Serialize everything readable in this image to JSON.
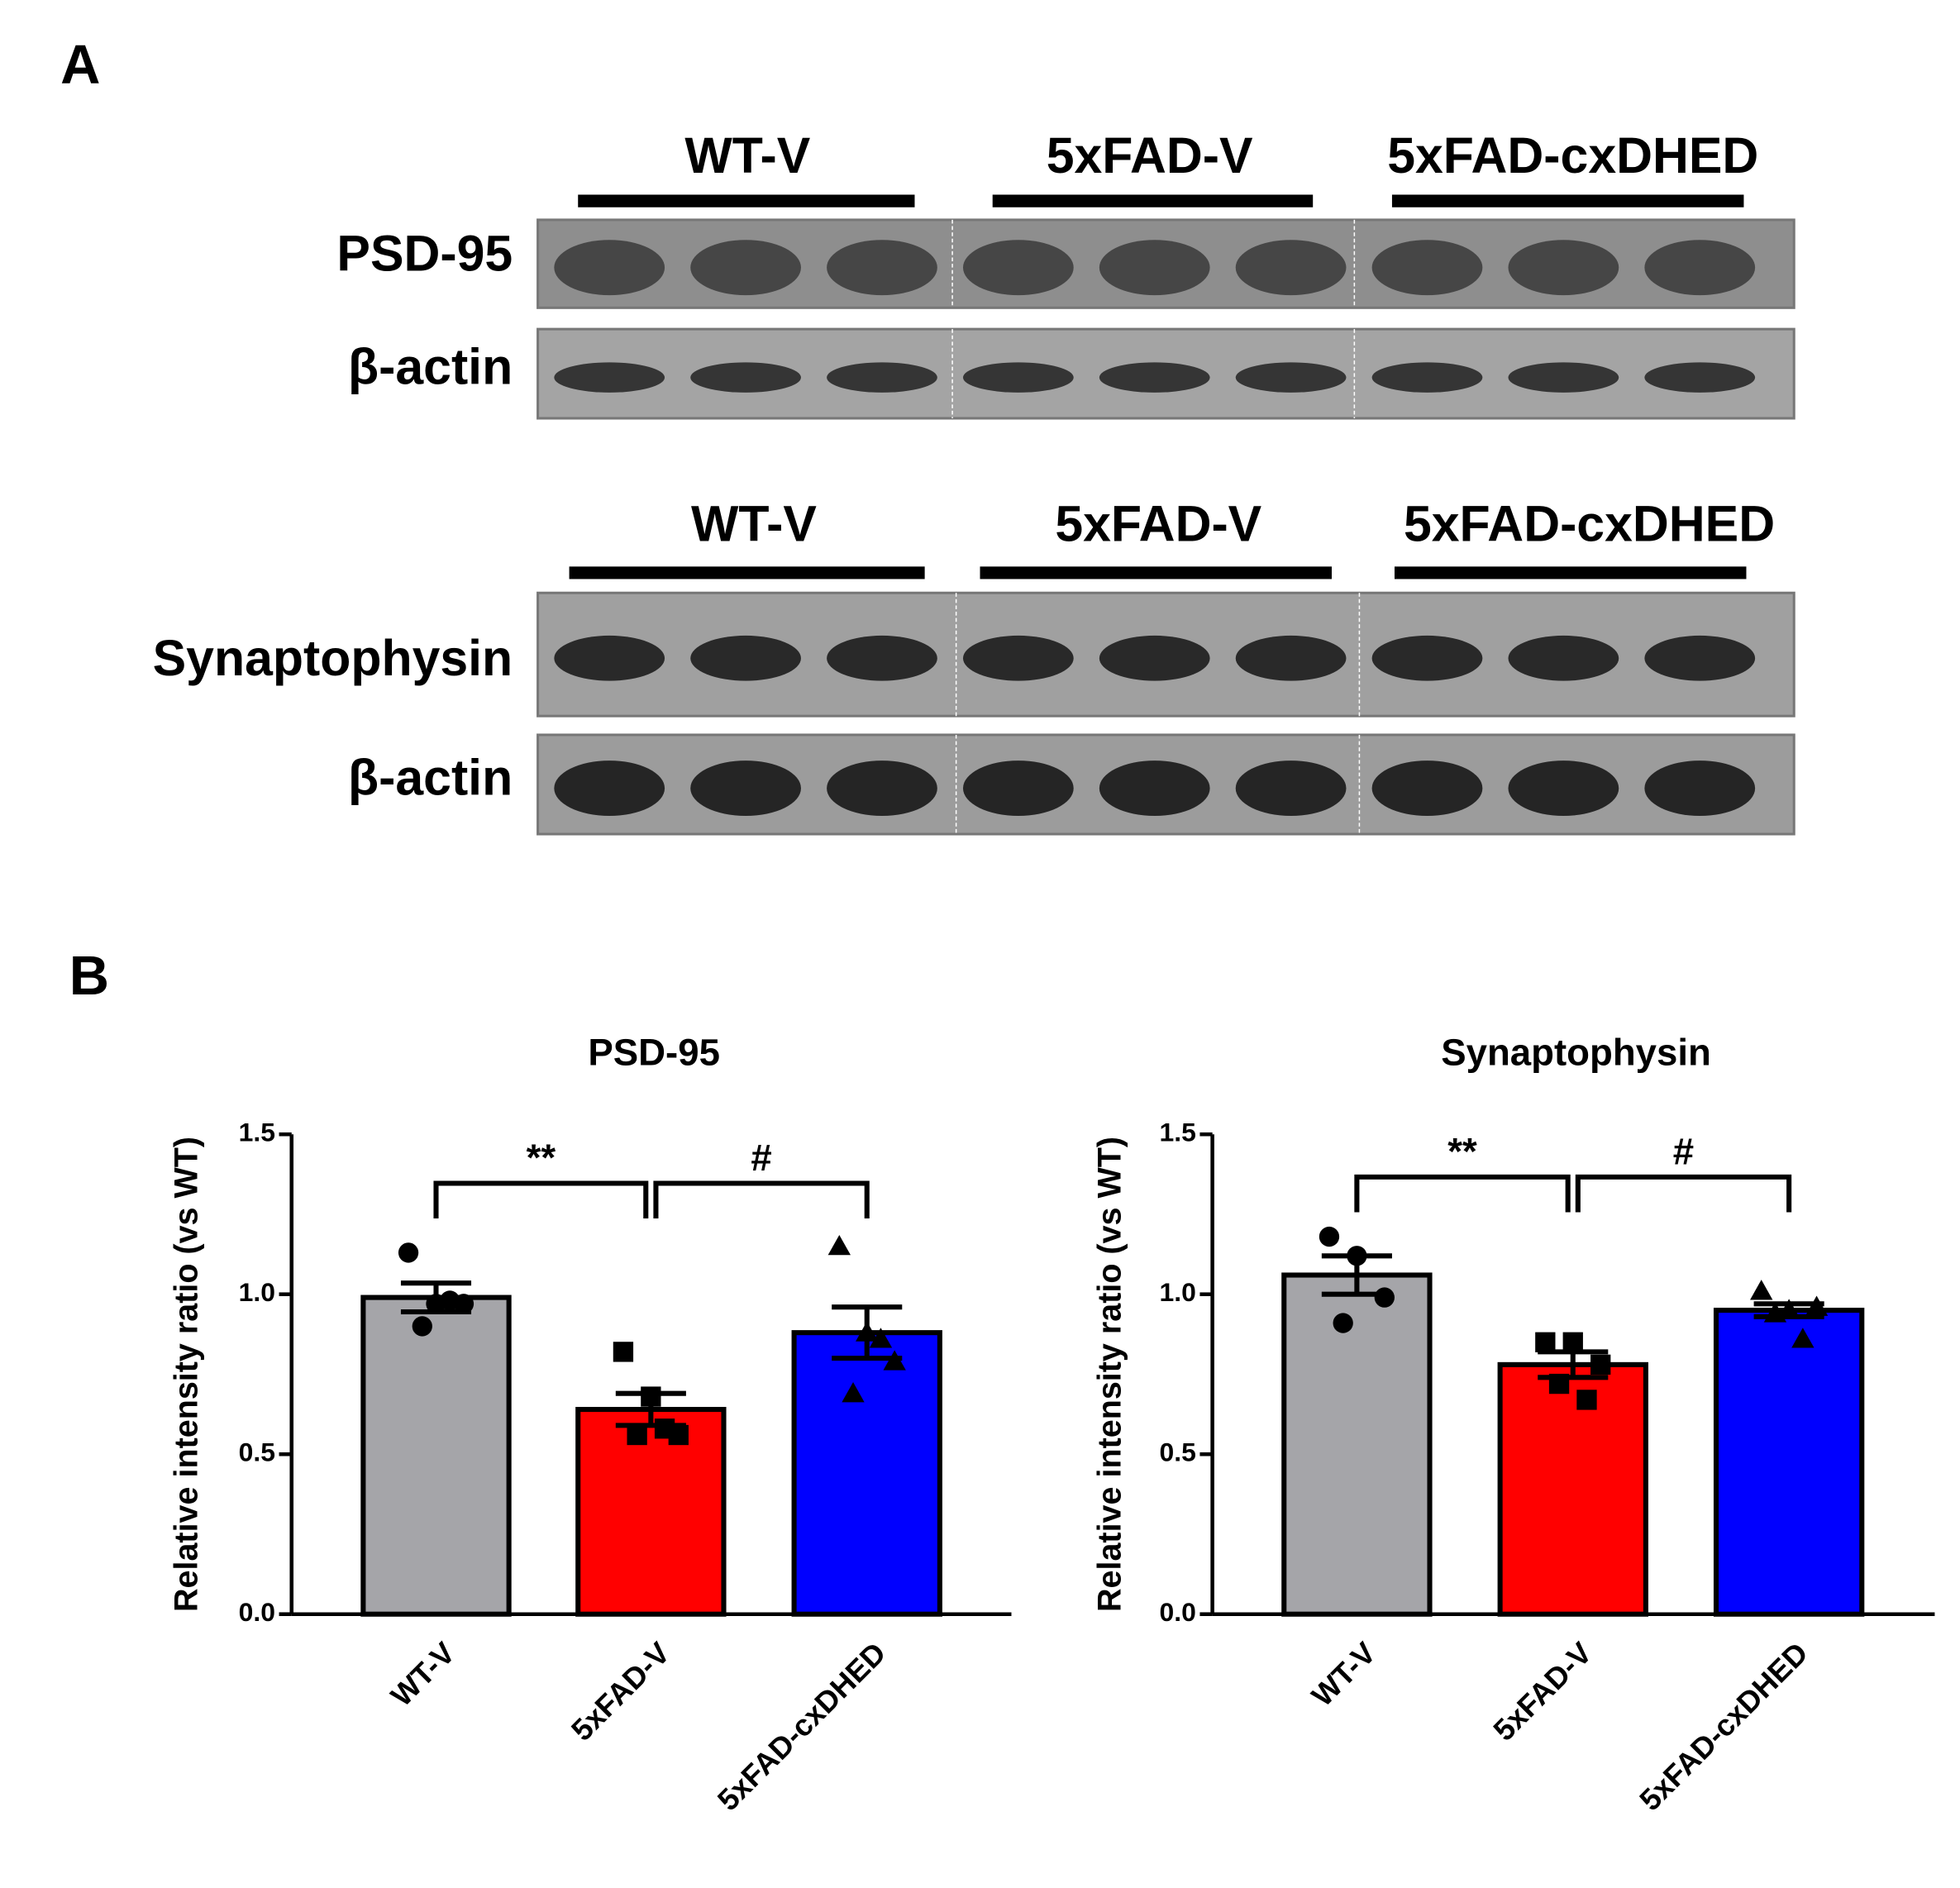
{
  "panel_labels": [
    "A",
    "B"
  ],
  "blots": [
    {
      "groups": [
        "WT-V",
        "5xFAD-V",
        "5xFAD-cxDHED"
      ],
      "rows": [
        "PSD-95",
        "β-actin"
      ]
    },
    {
      "groups": [
        "WT-V",
        "5xFAD-V",
        "5xFAD-cxDHED"
      ],
      "rows": [
        "Synaptophysin",
        "β-actin"
      ]
    }
  ],
  "chart_data": [
    {
      "type": "bar",
      "title": "PSD-95",
      "y_label": "Relative intensity ratio (vs WT)",
      "categories": [
        "WT-V",
        "5xFAD-V",
        "5xFAD-cxDHED"
      ],
      "values": [
        0.99,
        0.64,
        0.88
      ],
      "errors": [
        0.045,
        0.05,
        0.08
      ],
      "points": [
        [
          1.13,
          0.97,
          0.97,
          0.9,
          0.98
        ],
        [
          0.82,
          0.68,
          0.56,
          0.56,
          0.58
        ],
        [
          1.15,
          0.88,
          0.79,
          0.69,
          0.86
        ]
      ],
      "colors": [
        "#a5a5a9",
        "#ff0000",
        "#0000ff"
      ],
      "markers": [
        "circle",
        "square",
        "triangle"
      ],
      "annotations": [
        "**",
        "#"
      ],
      "ylim": [
        0,
        1.5
      ],
      "yticks": [
        {
          "value": 0,
          "label": "0.0"
        },
        0.5,
        {
          "value": 1,
          "label": "1.0"
        },
        1.5
      ]
    },
    {
      "type": "bar",
      "title": "Synaptophysin",
      "y_label": "Relative intensity ratio (vs WT)",
      "categories": [
        "WT-V",
        "5xFAD-V",
        "5xFAD-cxDHED"
      ],
      "values": [
        1.06,
        0.78,
        0.95
      ],
      "errors": [
        0.06,
        0.04,
        0.02
      ],
      "points": [
        [
          1.18,
          1.12,
          0.99,
          0.91
        ],
        [
          0.85,
          0.85,
          0.78,
          0.72,
          0.67
        ],
        [
          1.01,
          0.95,
          0.96,
          0.94,
          0.86
        ]
      ],
      "colors": [
        "#a5a5a9",
        "#ff0000",
        "#0000ff"
      ],
      "markers": [
        "circle",
        "square",
        "triangle"
      ],
      "annotations": [
        "**",
        "#"
      ],
      "ylim": [
        0,
        1.5
      ],
      "yticks": [
        {
          "value": 0,
          "label": "0.0"
        },
        0.5,
        {
          "value": 1,
          "label": "1.0"
        },
        1.5
      ]
    }
  ]
}
